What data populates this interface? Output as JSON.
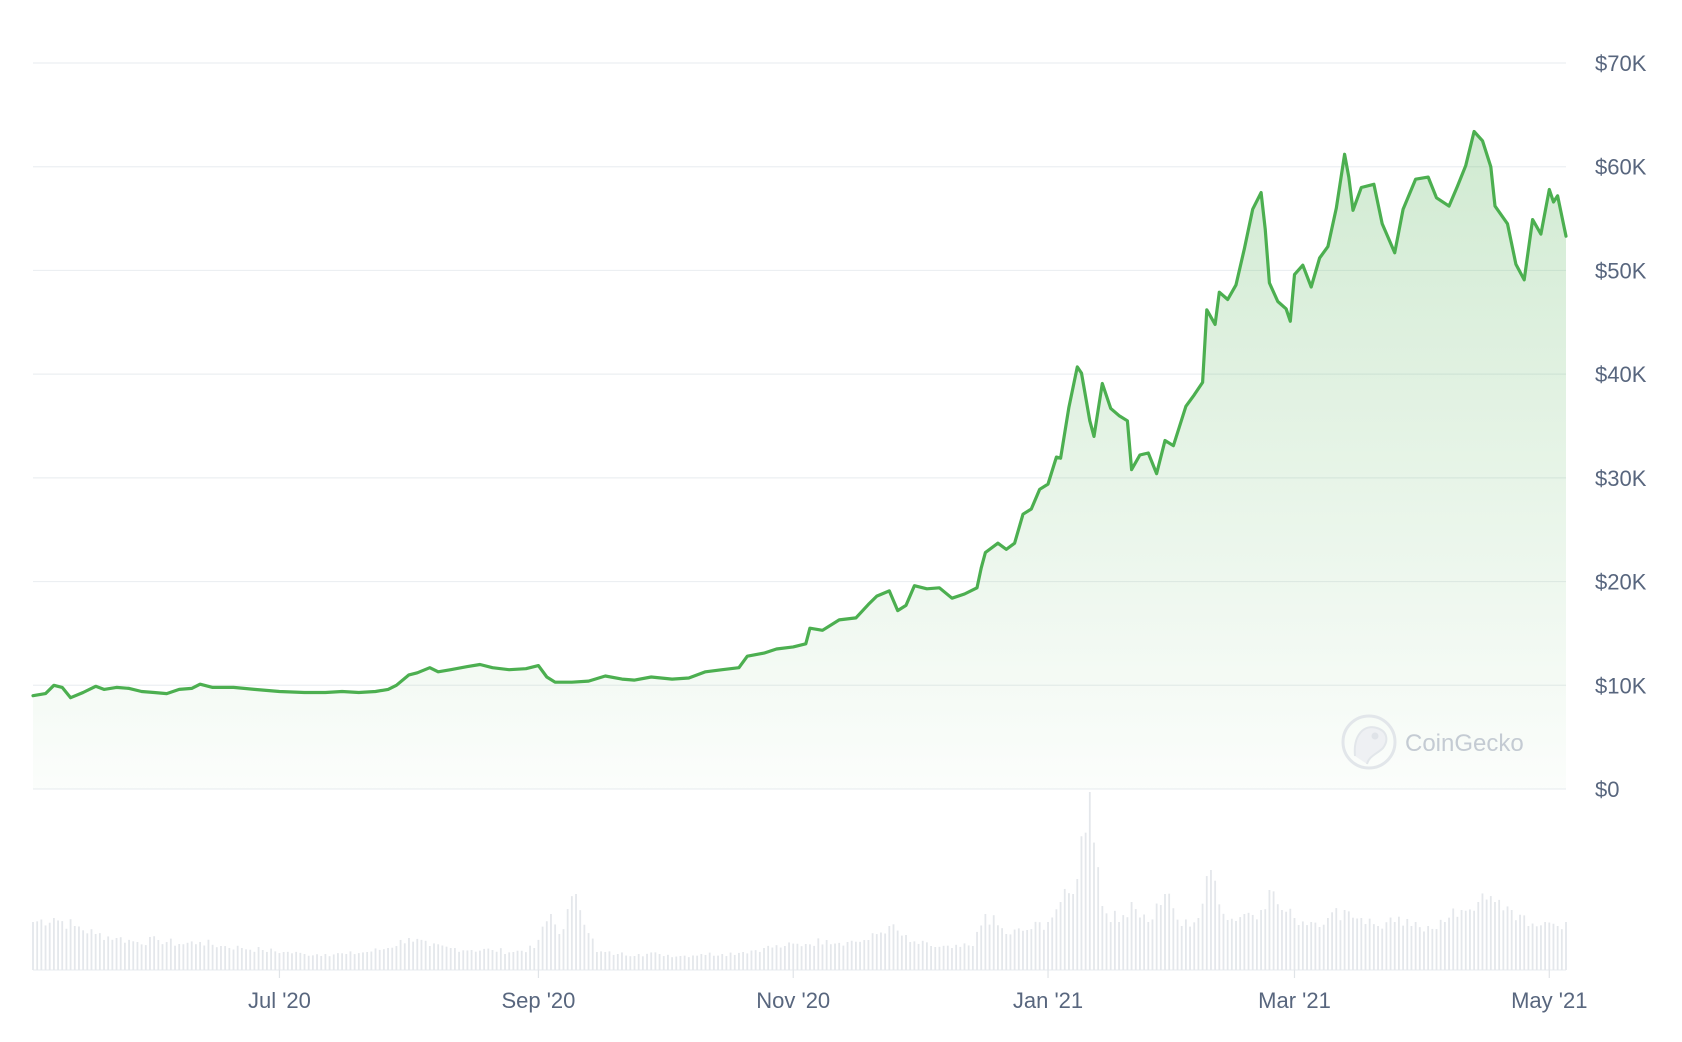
{
  "chart_data": {
    "type": "area",
    "title": "",
    "xlabel": "",
    "ylabel": "",
    "ylim": [
      0,
      70000
    ],
    "y_unit": "USD",
    "grid": "horizontal",
    "line_color": "#4caf50",
    "fill_color": "#4caf50",
    "volume_bar_color": "#e4e7eb",
    "y_ticks": [
      {
        "value": 0,
        "label": "$0"
      },
      {
        "value": 10000,
        "label": "$10K"
      },
      {
        "value": 20000,
        "label": "$20K"
      },
      {
        "value": 30000,
        "label": "$30K"
      },
      {
        "value": 40000,
        "label": "$40K"
      },
      {
        "value": 50000,
        "label": "$50K"
      },
      {
        "value": 60000,
        "label": "$60K"
      },
      {
        "value": 70000,
        "label": "$70K"
      }
    ],
    "x_ticks": [
      {
        "date": "2020-07-01",
        "label": "Jul '20"
      },
      {
        "date": "2020-09-01",
        "label": "Sep '20"
      },
      {
        "date": "2020-11-01",
        "label": "Nov '20"
      },
      {
        "date": "2021-01-01",
        "label": "Jan '21"
      },
      {
        "date": "2021-03-01",
        "label": "Mar '21"
      },
      {
        "date": "2021-05-01",
        "label": "May '21"
      }
    ],
    "x_range": [
      "2020-05-03",
      "2021-05-05"
    ],
    "series": [
      {
        "values": [
          [
            "2020-05-03",
            9000
          ],
          [
            "2020-05-06",
            9200
          ],
          [
            "2020-05-08",
            10000
          ],
          [
            "2020-05-10",
            9800
          ],
          [
            "2020-05-12",
            8800
          ],
          [
            "2020-05-15",
            9300
          ],
          [
            "2020-05-18",
            9900
          ],
          [
            "2020-05-20",
            9600
          ],
          [
            "2020-05-23",
            9800
          ],
          [
            "2020-05-26",
            9700
          ],
          [
            "2020-05-29",
            9400
          ],
          [
            "2020-06-01",
            9300
          ],
          [
            "2020-06-04",
            9200
          ],
          [
            "2020-06-07",
            9600
          ],
          [
            "2020-06-10",
            9700
          ],
          [
            "2020-06-12",
            10100
          ],
          [
            "2020-06-15",
            9800
          ],
          [
            "2020-06-20",
            9800
          ],
          [
            "2020-06-25",
            9600
          ],
          [
            "2020-07-01",
            9400
          ],
          [
            "2020-07-07",
            9300
          ],
          [
            "2020-07-12",
            9300
          ],
          [
            "2020-07-16",
            9400
          ],
          [
            "2020-07-20",
            9300
          ],
          [
            "2020-07-24",
            9400
          ],
          [
            "2020-07-27",
            9600
          ],
          [
            "2020-07-29",
            10000
          ],
          [
            "2020-08-01",
            11000
          ],
          [
            "2020-08-03",
            11200
          ],
          [
            "2020-08-06",
            11700
          ],
          [
            "2020-08-08",
            11300
          ],
          [
            "2020-08-11",
            11500
          ],
          [
            "2020-08-15",
            11800
          ],
          [
            "2020-08-18",
            12000
          ],
          [
            "2020-08-21",
            11700
          ],
          [
            "2020-08-25",
            11500
          ],
          [
            "2020-08-29",
            11600
          ],
          [
            "2020-09-01",
            11900
          ],
          [
            "2020-09-03",
            10800
          ],
          [
            "2020-09-05",
            10300
          ],
          [
            "2020-09-09",
            10300
          ],
          [
            "2020-09-13",
            10400
          ],
          [
            "2020-09-17",
            10900
          ],
          [
            "2020-09-21",
            10600
          ],
          [
            "2020-09-24",
            10500
          ],
          [
            "2020-09-28",
            10800
          ],
          [
            "2020-10-03",
            10600
          ],
          [
            "2020-10-07",
            10700
          ],
          [
            "2020-10-11",
            11300
          ],
          [
            "2020-10-15",
            11500
          ],
          [
            "2020-10-19",
            11700
          ],
          [
            "2020-10-21",
            12800
          ],
          [
            "2020-10-25",
            13100
          ],
          [
            "2020-10-28",
            13500
          ],
          [
            "2020-11-01",
            13700
          ],
          [
            "2020-11-04",
            14000
          ],
          [
            "2020-11-05",
            15500
          ],
          [
            "2020-11-08",
            15300
          ],
          [
            "2020-11-12",
            16300
          ],
          [
            "2020-11-16",
            16500
          ],
          [
            "2020-11-19",
            17800
          ],
          [
            "2020-11-21",
            18600
          ],
          [
            "2020-11-24",
            19100
          ],
          [
            "2020-11-26",
            17200
          ],
          [
            "2020-11-28",
            17700
          ],
          [
            "2020-11-30",
            19600
          ],
          [
            "2020-12-03",
            19300
          ],
          [
            "2020-12-06",
            19400
          ],
          [
            "2020-12-09",
            18400
          ],
          [
            "2020-12-12",
            18800
          ],
          [
            "2020-12-15",
            19400
          ],
          [
            "2020-12-16",
            21300
          ],
          [
            "2020-12-17",
            22800
          ],
          [
            "2020-12-20",
            23700
          ],
          [
            "2020-12-22",
            23100
          ],
          [
            "2020-12-24",
            23700
          ],
          [
            "2020-12-26",
            26500
          ],
          [
            "2020-12-28",
            27000
          ],
          [
            "2020-12-30",
            28900
          ],
          [
            "2021-01-01",
            29400
          ],
          [
            "2021-01-03",
            32000
          ],
          [
            "2021-01-04",
            31900
          ],
          [
            "2021-01-06",
            36800
          ],
          [
            "2021-01-08",
            40700
          ],
          [
            "2021-01-09",
            40100
          ],
          [
            "2021-01-11",
            35500
          ],
          [
            "2021-01-12",
            34000
          ],
          [
            "2021-01-14",
            39100
          ],
          [
            "2021-01-16",
            36700
          ],
          [
            "2021-01-18",
            36000
          ],
          [
            "2021-01-20",
            35500
          ],
          [
            "2021-01-21",
            30800
          ],
          [
            "2021-01-23",
            32200
          ],
          [
            "2021-01-25",
            32400
          ],
          [
            "2021-01-27",
            30400
          ],
          [
            "2021-01-29",
            33600
          ],
          [
            "2021-01-31",
            33100
          ],
          [
            "2021-02-03",
            36900
          ],
          [
            "2021-02-05",
            38000
          ],
          [
            "2021-02-07",
            39200
          ],
          [
            "2021-02-08",
            46200
          ],
          [
            "2021-02-10",
            44800
          ],
          [
            "2021-02-11",
            47900
          ],
          [
            "2021-02-13",
            47200
          ],
          [
            "2021-02-15",
            48600
          ],
          [
            "2021-02-17",
            52100
          ],
          [
            "2021-02-19",
            55900
          ],
          [
            "2021-02-21",
            57500
          ],
          [
            "2021-02-22",
            54000
          ],
          [
            "2021-02-23",
            48800
          ],
          [
            "2021-02-25",
            47000
          ],
          [
            "2021-02-27",
            46300
          ],
          [
            "2021-02-28",
            45100
          ],
          [
            "2021-03-01",
            49600
          ],
          [
            "2021-03-03",
            50500
          ],
          [
            "2021-03-05",
            48400
          ],
          [
            "2021-03-07",
            51200
          ],
          [
            "2021-03-09",
            52300
          ],
          [
            "2021-03-11",
            56000
          ],
          [
            "2021-03-13",
            61200
          ],
          [
            "2021-03-14",
            59000
          ],
          [
            "2021-03-15",
            55800
          ],
          [
            "2021-03-17",
            58000
          ],
          [
            "2021-03-20",
            58300
          ],
          [
            "2021-03-22",
            54500
          ],
          [
            "2021-03-25",
            51700
          ],
          [
            "2021-03-27",
            55900
          ],
          [
            "2021-03-30",
            58800
          ],
          [
            "2021-04-02",
            59000
          ],
          [
            "2021-04-04",
            57000
          ],
          [
            "2021-04-07",
            56200
          ],
          [
            "2021-04-09",
            58100
          ],
          [
            "2021-04-11",
            60100
          ],
          [
            "2021-04-13",
            63400
          ],
          [
            "2021-04-15",
            62500
          ],
          [
            "2021-04-17",
            60000
          ],
          [
            "2021-04-18",
            56200
          ],
          [
            "2021-04-21",
            54500
          ],
          [
            "2021-04-23",
            50600
          ],
          [
            "2021-04-25",
            49100
          ],
          [
            "2021-04-27",
            54900
          ],
          [
            "2021-04-29",
            53500
          ],
          [
            "2021-05-01",
            57800
          ],
          [
            "2021-05-02",
            56600
          ],
          [
            "2021-05-03",
            57200
          ],
          [
            "2021-05-05",
            53300
          ]
        ]
      }
    ],
    "volume_ylim": [
      0,
      80
    ],
    "volume": [
      [
        "2020-05-03",
        24
      ],
      [
        "2020-05-08",
        26
      ],
      [
        "2020-05-13",
        22
      ],
      [
        "2020-05-18",
        18
      ],
      [
        "2020-05-23",
        16
      ],
      [
        "2020-05-28",
        14
      ],
      [
        "2020-06-02",
        15
      ],
      [
        "2020-06-07",
        13
      ],
      [
        "2020-06-12",
        14
      ],
      [
        "2020-06-17",
        12
      ],
      [
        "2020-06-22",
        11
      ],
      [
        "2020-06-27",
        10
      ],
      [
        "2020-07-02",
        9
      ],
      [
        "2020-07-07",
        8
      ],
      [
        "2020-07-12",
        8
      ],
      [
        "2020-07-17",
        8
      ],
      [
        "2020-07-22",
        9
      ],
      [
        "2020-07-27",
        11
      ],
      [
        "2020-08-01",
        16
      ],
      [
        "2020-08-06",
        12
      ],
      [
        "2020-08-11",
        11
      ],
      [
        "2020-08-16",
        10
      ],
      [
        "2020-08-21",
        10
      ],
      [
        "2020-08-26",
        9
      ],
      [
        "2020-08-31",
        11
      ],
      [
        "2020-09-04",
        28
      ],
      [
        "2020-09-06",
        18
      ],
      [
        "2020-09-10",
        38
      ],
      [
        "2020-09-15",
        9
      ],
      [
        "2020-09-20",
        8
      ],
      [
        "2020-09-25",
        8
      ],
      [
        "2020-09-30",
        8
      ],
      [
        "2020-10-05",
        7
      ],
      [
        "2020-10-10",
        8
      ],
      [
        "2020-10-15",
        8
      ],
      [
        "2020-10-20",
        9
      ],
      [
        "2020-10-25",
        11
      ],
      [
        "2020-10-30",
        12
      ],
      [
        "2020-11-04",
        13
      ],
      [
        "2020-11-09",
        15
      ],
      [
        "2020-11-14",
        14
      ],
      [
        "2020-11-19",
        15
      ],
      [
        "2020-11-24",
        22
      ],
      [
        "2020-11-29",
        14
      ],
      [
        "2020-12-04",
        12
      ],
      [
        "2020-12-09",
        11
      ],
      [
        "2020-12-14",
        12
      ],
      [
        "2020-12-17",
        28
      ],
      [
        "2020-12-22",
        18
      ],
      [
        "2020-12-27",
        20
      ],
      [
        "2021-01-01",
        24
      ],
      [
        "2021-01-04",
        34
      ],
      [
        "2021-01-07",
        38
      ],
      [
        "2021-01-11",
        89
      ],
      [
        "2021-01-14",
        32
      ],
      [
        "2021-01-18",
        24
      ],
      [
        "2021-01-21",
        34
      ],
      [
        "2021-01-25",
        24
      ],
      [
        "2021-01-29",
        38
      ],
      [
        "2021-02-02",
        22
      ],
      [
        "2021-02-06",
        26
      ],
      [
        "2021-02-09",
        50
      ],
      [
        "2021-02-13",
        25
      ],
      [
        "2021-02-17",
        28
      ],
      [
        "2021-02-21",
        30
      ],
      [
        "2021-02-23",
        40
      ],
      [
        "2021-02-26",
        30
      ],
      [
        "2021-03-01",
        26
      ],
      [
        "2021-03-05",
        24
      ],
      [
        "2021-03-09",
        26
      ],
      [
        "2021-03-13",
        30
      ],
      [
        "2021-03-17",
        26
      ],
      [
        "2021-03-21",
        22
      ],
      [
        "2021-03-25",
        24
      ],
      [
        "2021-03-29",
        22
      ],
      [
        "2021-04-02",
        22
      ],
      [
        "2021-04-06",
        24
      ],
      [
        "2021-04-10",
        30
      ],
      [
        "2021-04-14",
        34
      ],
      [
        "2021-04-18",
        34
      ],
      [
        "2021-04-22",
        30
      ],
      [
        "2021-04-26",
        22
      ],
      [
        "2021-04-30",
        24
      ],
      [
        "2021-05-03",
        22
      ],
      [
        "2021-05-05",
        24
      ]
    ]
  },
  "watermark": {
    "text": "CoinGecko",
    "icon": "gecko-logo-icon"
  }
}
